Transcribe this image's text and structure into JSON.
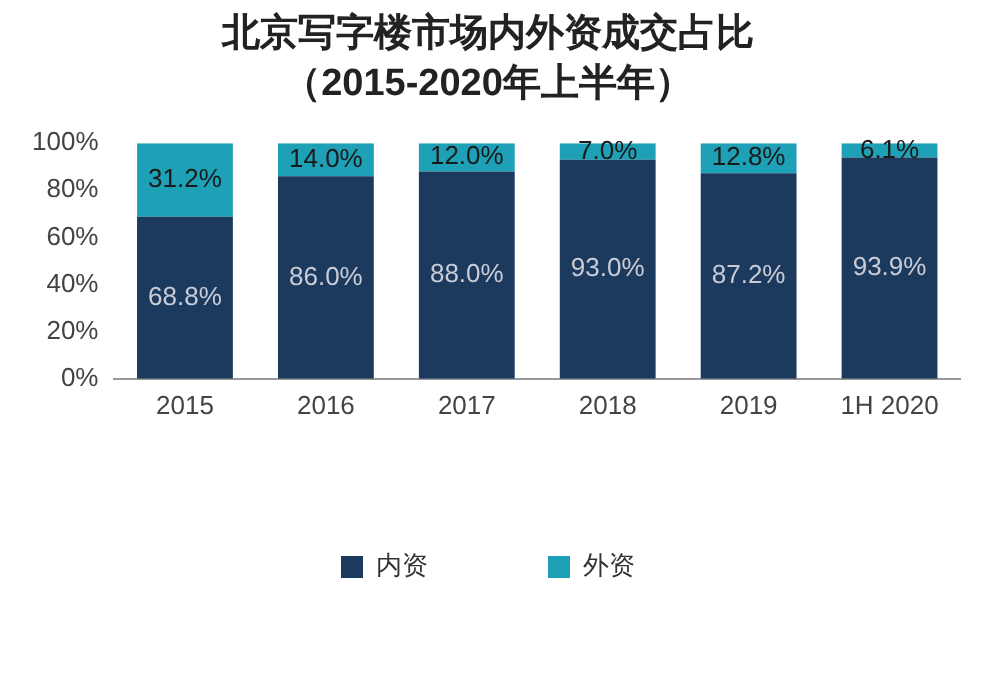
{
  "chart_data": {
    "type": "bar",
    "title": "北京写字楼市场内外资成交占比",
    "subtitle": "（2015-2020年上半年）",
    "categories": [
      "2015",
      "2016",
      "2017",
      "2018",
      "2019",
      "1H 2020"
    ],
    "stacked": true,
    "ylim": [
      0,
      100
    ],
    "yticks": [
      {
        "value": 0,
        "label": "0%"
      },
      {
        "value": 20,
        "label": "20%"
      },
      {
        "value": 40,
        "label": "40%"
      },
      {
        "value": 60,
        "label": "60%"
      },
      {
        "value": 80,
        "label": "80%"
      },
      {
        "value": 100,
        "label": "100%"
      }
    ],
    "grid": false,
    "legend": "bottom",
    "series": [
      {
        "name": "内资",
        "color": "#1c3a5e",
        "values": [
          68.8,
          86.0,
          88.0,
          93.0,
          87.2,
          93.9
        ],
        "value_labels": [
          "68.8%",
          "86.0%",
          "88.0%",
          "93.0%",
          "87.2%",
          "93.9%"
        ]
      },
      {
        "name": "外资",
        "color": "#1ea0b6",
        "values": [
          31.2,
          14.0,
          12.0,
          7.0,
          12.8,
          6.1
        ],
        "value_labels": [
          "31.2%",
          "14.0%",
          "12.0%",
          "7.0%",
          "12.8%",
          "6.1%"
        ]
      }
    ]
  }
}
